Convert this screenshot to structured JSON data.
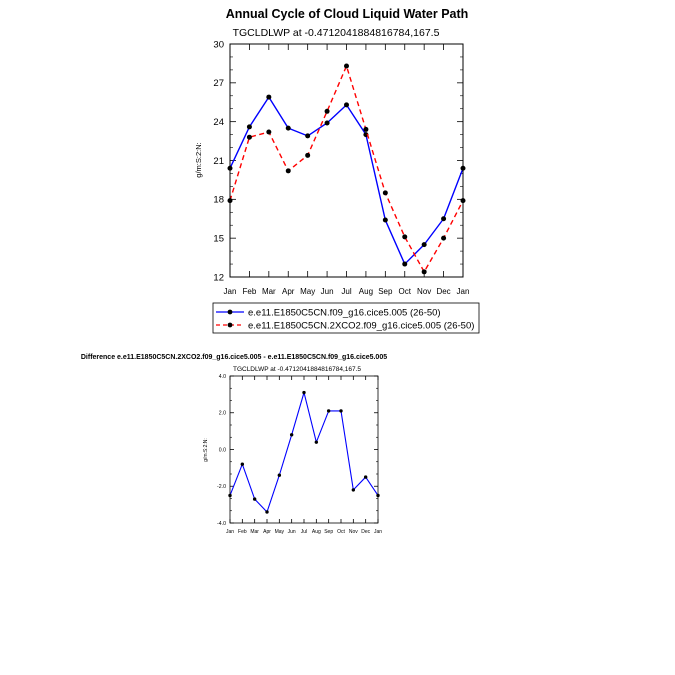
{
  "chart_data": [
    {
      "type": "line",
      "title": "Annual Cycle of Cloud Liquid Water Path",
      "subtitle": "TGCLDLWP at -0.4712041884816784,167.5",
      "ylabel": "g/m:S:2:N:",
      "xlabel": "",
      "ylim": [
        12,
        30
      ],
      "yticks": [
        "12",
        "15",
        "18",
        "21",
        "24",
        "27",
        "30"
      ],
      "categories": [
        "Jan",
        "Feb",
        "Mar",
        "Apr",
        "May",
        "Jun",
        "Jul",
        "Aug",
        "Sep",
        "Oct",
        "Nov",
        "Dec",
        "Jan"
      ],
      "series": [
        {
          "name": "e.e11.E1850C5CN.f09_g16.cice5.005 (26-50)",
          "color": "#0000ff",
          "dash": "solid",
          "values": [
            20.4,
            23.6,
            25.9,
            23.5,
            22.9,
            23.9,
            25.3,
            23.0,
            16.4,
            13.0,
            14.5,
            16.5,
            20.4
          ]
        },
        {
          "name": "e.e11.E1850C5CN.2XCO2.f09_g16.cice5.005 (26-50)",
          "color": "#ff0000",
          "dash": "dashed",
          "values": [
            17.9,
            22.8,
            23.2,
            20.2,
            21.4,
            24.8,
            28.3,
            23.4,
            18.5,
            15.1,
            12.4,
            15.0,
            17.9
          ]
        }
      ],
      "legend_position": "below"
    },
    {
      "type": "line",
      "title": "Difference e.e11.E1850C5CN.2XCO2.f09_g16.cice5.005 - e.e11.E1850C5CN.f09_g16.cice5.005",
      "subtitle": "TGCLDLWP at -0.4712041884816784,167.5",
      "ylabel": "g/m:S:2:N:",
      "xlabel": "",
      "ylim": [
        -4,
        4
      ],
      "yticks": [
        "-4.0",
        "-2.0",
        "0.0",
        "2.0",
        "4.0"
      ],
      "categories": [
        "Jan",
        "Feb",
        "Mar",
        "Apr",
        "May",
        "Jun",
        "Jul",
        "Aug",
        "Sep",
        "Oct",
        "Nov",
        "Dec",
        "Jan"
      ],
      "series": [
        {
          "name": "Difference",
          "color": "#0000ff",
          "dash": "solid",
          "values": [
            -2.5,
            -0.8,
            -2.7,
            -3.4,
            -1.4,
            0.8,
            3.1,
            0.4,
            2.1,
            2.1,
            -2.2,
            -1.5,
            -2.5
          ]
        }
      ]
    }
  ]
}
